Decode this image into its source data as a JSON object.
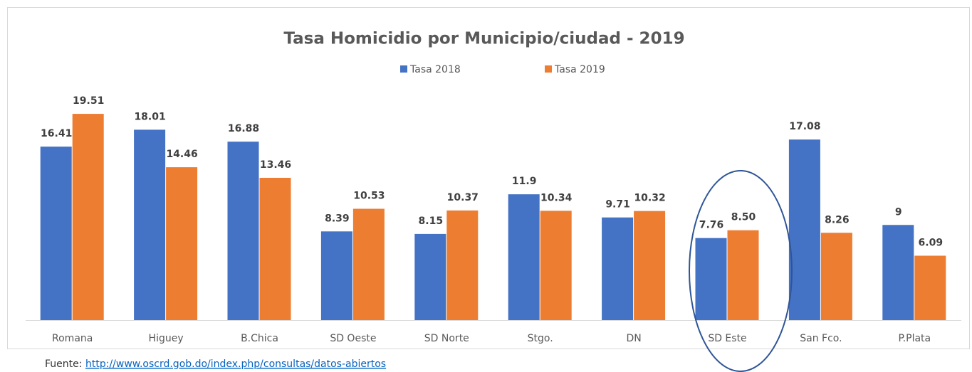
{
  "chart_data": {
    "type": "bar",
    "title": "Tasa Homicidio por Municipio/ciudad - 2019",
    "categories": [
      "Romana",
      "Higuey",
      "B.Chica",
      "SD Oeste",
      "SD Norte",
      "Stgo.",
      "DN",
      "SD Este",
      "San Fco.",
      "P.Plata"
    ],
    "series": [
      {
        "name": "Tasa 2018",
        "color": "#4472c4",
        "values": [
          16.41,
          18.01,
          16.88,
          8.39,
          8.15,
          11.9,
          9.71,
          7.76,
          17.08,
          9
        ]
      },
      {
        "name": "Tasa 2019",
        "color": "#ed7d31",
        "values": [
          19.51,
          14.46,
          13.46,
          10.53,
          10.37,
          10.34,
          10.32,
          8.5,
          8.26,
          6.09
        ],
        "value_labels": [
          "19.51",
          "14.46",
          "13.46",
          "10.53",
          "10.37",
          "10.34",
          "10.32",
          "8.50",
          "8.26",
          "6.09"
        ]
      }
    ],
    "ylim": [
      0,
      25
    ],
    "legend": "top"
  },
  "footer": {
    "label": "Fuente:",
    "link": "http://www.oscrd.gob.do/index.php/consultas/datos-abiertos"
  }
}
